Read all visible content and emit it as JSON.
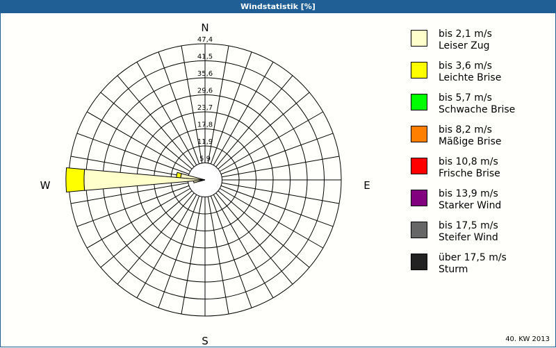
{
  "title": "Windstatistik [%]",
  "footer": "40. KW 2013",
  "chart_data": {
    "type": "polar-stacked-bar (wind rose)",
    "title": "Windstatistik [%]",
    "directions_deg_step": 10,
    "compass_labels": {
      "N": "N",
      "E": "E",
      "S": "S",
      "W": "W"
    },
    "radial_ticks": [
      "5,9",
      "11,9",
      "17,8",
      "23,7",
      "29,6",
      "35,6",
      "41,5",
      "47,4"
    ],
    "radial_max": 47.4,
    "categories": [
      "bis 2,1 m/s",
      "bis 3,6 m/s",
      "bis 5,7 m/s",
      "bis 8,2 m/s",
      "bis 10,8 m/s",
      "bis 13,9 m/s",
      "bis 17,5 m/s",
      "über 17,5 m/s"
    ],
    "series": [
      {
        "name": "bis 2,1 m/s",
        "desc": "Leiser Zug",
        "color": "#ffffcc",
        "values_by_direction": {
          "260": 4.0,
          "270": 42.1,
          "280": 8.5
        }
      },
      {
        "name": "bis 3,6 m/s",
        "desc": "Leichte Brise",
        "color": "#ffff00",
        "values_by_direction": {
          "270": 6.3,
          "280": 1.5
        }
      },
      {
        "name": "bis 5,7 m/s",
        "desc": "Schwache Brise",
        "color": "#00ff00",
        "values_by_direction": {}
      },
      {
        "name": "bis 8,2 m/s",
        "desc": "Mäßige Brise",
        "color": "#ff8000",
        "values_by_direction": {}
      },
      {
        "name": "bis 10,8 m/s",
        "desc": "Frische Brise",
        "color": "#ff0000",
        "values_by_direction": {}
      },
      {
        "name": "bis 13,9 m/s",
        "desc": "Starker Wind",
        "color": "#800080",
        "values_by_direction": {}
      },
      {
        "name": "bis 17,5 m/s",
        "desc": "Steifer Wind",
        "color": "#666666",
        "values_by_direction": {}
      },
      {
        "name": "über 17,5 m/s",
        "desc": "Sturm",
        "color": "#222222",
        "values_by_direction": {}
      }
    ],
    "legend": "right"
  }
}
